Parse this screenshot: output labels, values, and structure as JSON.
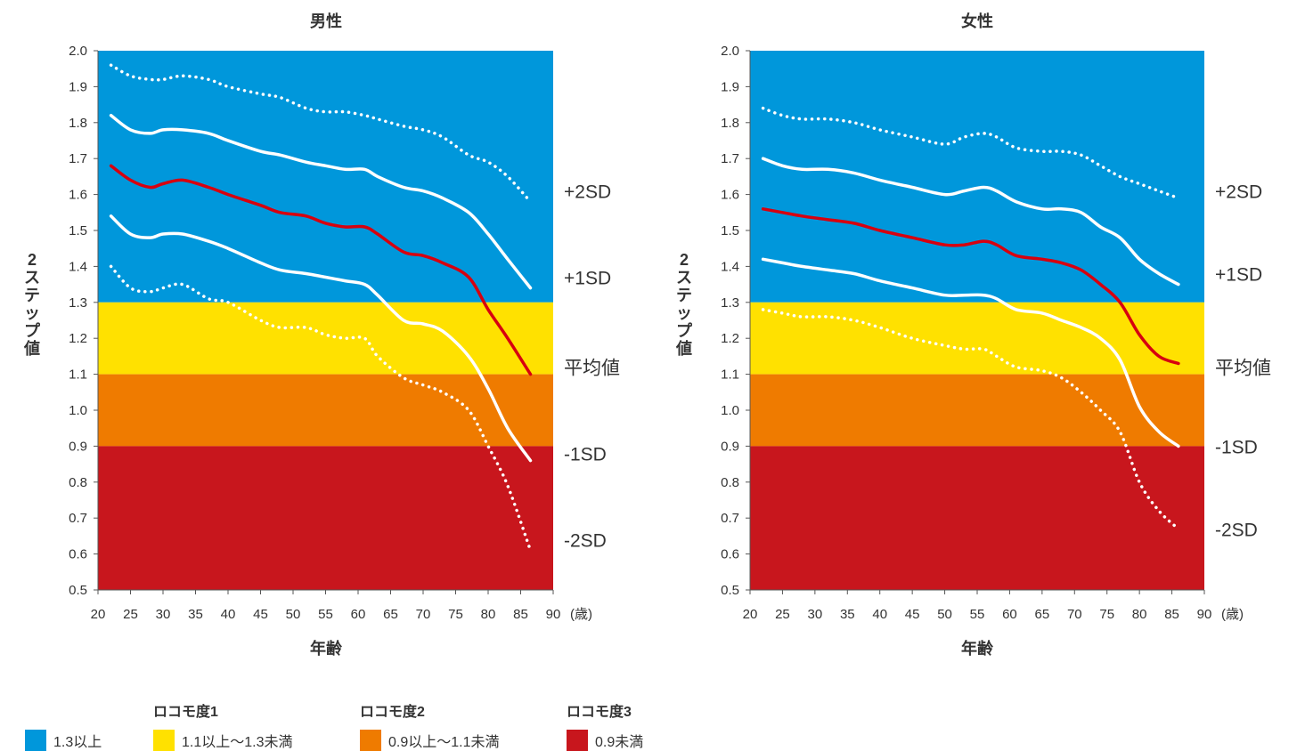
{
  "chart_data": [
    {
      "type": "line",
      "title": "男性",
      "xlabel": "年齢",
      "ylabel": "2ステップ値",
      "x_unit": "(歳)",
      "xlim": [
        20,
        90
      ],
      "ylim": [
        0.5,
        2.0
      ],
      "x_ticks": [
        "20",
        "25",
        "30",
        "35",
        "40",
        "45",
        "50",
        "55",
        "60",
        "65",
        "70",
        "75",
        "80",
        "85",
        "90"
      ],
      "y_ticks": [
        "0.5",
        "0.6",
        "0.7",
        "0.8",
        "0.9",
        "1.0",
        "1.1",
        "1.2",
        "1.3",
        "1.4",
        "1.5",
        "1.6",
        "1.7",
        "1.8",
        "1.9",
        "2.0"
      ],
      "bands": [
        {
          "from": 1.3,
          "to": 2.0,
          "color": "#0097DB"
        },
        {
          "from": 1.1,
          "to": 1.3,
          "color": "#FFE100"
        },
        {
          "from": 0.9,
          "to": 1.1,
          "color": "#EF7B00"
        },
        {
          "from": 0.5,
          "to": 0.9,
          "color": "#C8161D"
        }
      ],
      "series": [
        {
          "name": "+2SD",
          "style": "dotted",
          "color": "#ffffff",
          "x": [
            22,
            25,
            28,
            30,
            33,
            37,
            40,
            45,
            48,
            52,
            55,
            58,
            61,
            63,
            67,
            70,
            73,
            77,
            80,
            83,
            86.5
          ],
          "y": [
            1.96,
            1.93,
            1.92,
            1.92,
            1.93,
            1.92,
            1.9,
            1.88,
            1.87,
            1.84,
            1.83,
            1.83,
            1.82,
            1.81,
            1.79,
            1.78,
            1.76,
            1.71,
            1.69,
            1.65,
            1.58
          ]
        },
        {
          "name": "+1SD",
          "style": "solid",
          "color": "#ffffff",
          "x": [
            22,
            25,
            28,
            30,
            33,
            37,
            40,
            45,
            48,
            52,
            55,
            58,
            61,
            63,
            67,
            70,
            73,
            77,
            80,
            83,
            86.5
          ],
          "y": [
            1.82,
            1.78,
            1.77,
            1.78,
            1.78,
            1.77,
            1.75,
            1.72,
            1.71,
            1.69,
            1.68,
            1.67,
            1.67,
            1.65,
            1.62,
            1.61,
            1.59,
            1.55,
            1.49,
            1.42,
            1.34
          ]
        },
        {
          "name": "平均値",
          "style": "solid",
          "color": "#D7000F",
          "x": [
            22,
            25,
            28,
            30,
            33,
            37,
            40,
            45,
            48,
            52,
            55,
            58,
            61,
            63,
            67,
            70,
            73,
            77,
            80,
            83,
            86.5
          ],
          "y": [
            1.68,
            1.64,
            1.62,
            1.63,
            1.64,
            1.62,
            1.6,
            1.57,
            1.55,
            1.54,
            1.52,
            1.51,
            1.51,
            1.49,
            1.44,
            1.43,
            1.41,
            1.37,
            1.28,
            1.2,
            1.1
          ]
        },
        {
          "name": "-1SD",
          "style": "solid",
          "color": "#ffffff",
          "x": [
            22,
            25,
            28,
            30,
            33,
            37,
            40,
            45,
            48,
            52,
            55,
            58,
            61,
            63,
            67,
            70,
            73,
            77,
            80,
            83,
            86.5
          ],
          "y": [
            1.54,
            1.49,
            1.48,
            1.49,
            1.49,
            1.47,
            1.45,
            1.41,
            1.39,
            1.38,
            1.37,
            1.36,
            1.35,
            1.32,
            1.25,
            1.24,
            1.22,
            1.15,
            1.06,
            0.95,
            0.86
          ]
        },
        {
          "name": "-2SD",
          "style": "dotted",
          "color": "#ffffff",
          "x": [
            22,
            25,
            28,
            30,
            33,
            37,
            40,
            45,
            48,
            52,
            55,
            58,
            61,
            63,
            67,
            70,
            73,
            77,
            80,
            83,
            86.5
          ],
          "y": [
            1.4,
            1.34,
            1.33,
            1.34,
            1.35,
            1.31,
            1.3,
            1.25,
            1.23,
            1.23,
            1.21,
            1.2,
            1.2,
            1.15,
            1.09,
            1.07,
            1.05,
            1.0,
            0.9,
            0.79,
            0.61
          ]
        }
      ],
      "side_labels": [
        "+2SD",
        "+1SD",
        "平均値",
        "-1SD",
        "-2SD"
      ],
      "side_label_values": [
        1.61,
        1.37,
        1.12,
        0.88,
        0.64
      ]
    },
    {
      "type": "line",
      "title": "女性",
      "xlabel": "年齢",
      "ylabel": "2ステップ値",
      "x_unit": "(歳)",
      "xlim": [
        20,
        90
      ],
      "ylim": [
        0.5,
        2.0
      ],
      "x_ticks": [
        "20",
        "25",
        "30",
        "35",
        "40",
        "45",
        "50",
        "55",
        "60",
        "65",
        "70",
        "75",
        "80",
        "85",
        "90"
      ],
      "y_ticks": [
        "0.5",
        "0.6",
        "0.7",
        "0.8",
        "0.9",
        "1.0",
        "1.1",
        "1.2",
        "1.3",
        "1.4",
        "1.5",
        "1.6",
        "1.7",
        "1.8",
        "1.9",
        "2.0"
      ],
      "bands": [
        {
          "from": 1.3,
          "to": 2.0,
          "color": "#0097DB"
        },
        {
          "from": 1.1,
          "to": 1.3,
          "color": "#FFE100"
        },
        {
          "from": 0.9,
          "to": 1.1,
          "color": "#EF7B00"
        },
        {
          "from": 0.5,
          "to": 0.9,
          "color": "#C8161D"
        }
      ],
      "series": [
        {
          "name": "+2SD",
          "style": "dotted",
          "color": "#ffffff",
          "x": [
            22,
            25,
            28,
            32,
            36,
            40,
            45,
            50,
            53,
            56,
            58,
            61,
            65,
            68,
            71,
            74,
            77,
            80,
            83,
            86
          ],
          "y": [
            1.84,
            1.82,
            1.81,
            1.81,
            1.8,
            1.78,
            1.76,
            1.74,
            1.76,
            1.77,
            1.76,
            1.73,
            1.72,
            1.72,
            1.71,
            1.68,
            1.65,
            1.63,
            1.61,
            1.59
          ]
        },
        {
          "name": "+1SD",
          "style": "solid",
          "color": "#ffffff",
          "x": [
            22,
            25,
            28,
            32,
            36,
            40,
            45,
            50,
            53,
            56,
            58,
            61,
            65,
            68,
            71,
            74,
            77,
            80,
            83,
            86
          ],
          "y": [
            1.7,
            1.68,
            1.67,
            1.67,
            1.66,
            1.64,
            1.62,
            1.6,
            1.61,
            1.62,
            1.61,
            1.58,
            1.56,
            1.56,
            1.55,
            1.51,
            1.48,
            1.42,
            1.38,
            1.35
          ]
        },
        {
          "name": "平均値",
          "style": "solid",
          "color": "#D7000F",
          "x": [
            22,
            25,
            28,
            32,
            36,
            40,
            45,
            50,
            53,
            56,
            58,
            61,
            65,
            68,
            71,
            74,
            77,
            80,
            83,
            86
          ],
          "y": [
            1.56,
            1.55,
            1.54,
            1.53,
            1.52,
            1.5,
            1.48,
            1.46,
            1.46,
            1.47,
            1.46,
            1.43,
            1.42,
            1.41,
            1.39,
            1.35,
            1.3,
            1.21,
            1.15,
            1.13
          ]
        },
        {
          "name": "-1SD",
          "style": "solid",
          "color": "#ffffff",
          "x": [
            22,
            25,
            28,
            32,
            36,
            40,
            45,
            50,
            53,
            56,
            58,
            61,
            65,
            68,
            71,
            74,
            77,
            80,
            83,
            86
          ],
          "y": [
            1.42,
            1.41,
            1.4,
            1.39,
            1.38,
            1.36,
            1.34,
            1.32,
            1.32,
            1.32,
            1.31,
            1.28,
            1.27,
            1.25,
            1.23,
            1.2,
            1.14,
            1.01,
            0.94,
            0.9
          ]
        },
        {
          "name": "-2SD",
          "style": "dotted",
          "color": "#ffffff",
          "x": [
            22,
            25,
            28,
            32,
            36,
            40,
            45,
            50,
            53,
            56,
            58,
            61,
            65,
            68,
            71,
            74,
            77,
            80,
            83,
            86
          ],
          "y": [
            1.28,
            1.27,
            1.26,
            1.26,
            1.25,
            1.23,
            1.2,
            1.18,
            1.17,
            1.17,
            1.15,
            1.12,
            1.11,
            1.09,
            1.05,
            1.0,
            0.94,
            0.8,
            0.72,
            0.67
          ]
        }
      ],
      "side_labels": [
        "+2SD",
        "+1SD",
        "平均値",
        "-1SD",
        "-2SD"
      ],
      "side_label_values": [
        1.61,
        1.38,
        1.12,
        0.9,
        0.67
      ]
    }
  ],
  "legend": {
    "headers": [
      "ロコモ度1",
      "ロコモ度2",
      "ロコモ度3"
    ],
    "items": [
      {
        "label": "1.3以上",
        "color": "#0097DB"
      },
      {
        "label": "1.1以上～1.3未満",
        "color": "#FFE100"
      },
      {
        "label": "0.9以上～1.1未満",
        "color": "#EF7B00"
      },
      {
        "label": "0.9未満",
        "color": "#C8161D"
      }
    ]
  }
}
